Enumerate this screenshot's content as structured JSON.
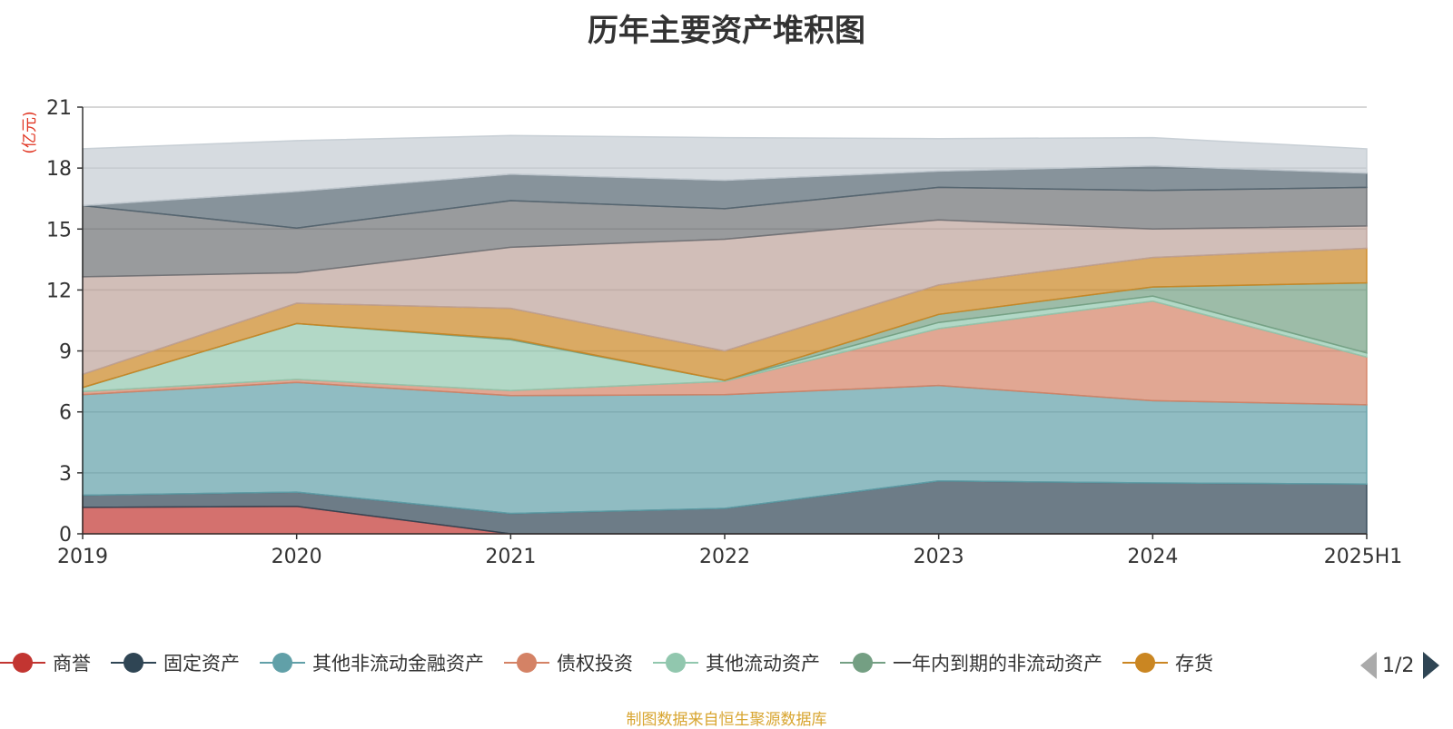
{
  "chart_data": {
    "type": "area",
    "stacked": true,
    "title": "历年主要资产堆积图",
    "ylabel": "(亿元)",
    "xlabel": "",
    "categories": [
      "2019",
      "2020",
      "2021",
      "2022",
      "2023",
      "2024",
      "2025H1"
    ],
    "ylim": [
      0,
      21
    ],
    "yticks": [
      0,
      3,
      6,
      9,
      12,
      15,
      18,
      21
    ],
    "grid": true,
    "series": [
      {
        "name": "商誉",
        "color": "#c23531",
        "values": [
          1.3,
          1.35,
          0.0,
          0.0,
          0.0,
          0.0,
          0.0
        ]
      },
      {
        "name": "固定资产",
        "color": "#2f4554",
        "values": [
          0.6,
          0.7,
          1.0,
          1.25,
          2.6,
          2.5,
          2.45
        ]
      },
      {
        "name": "其他非流动金融资产",
        "color": "#61a0a8",
        "values": [
          4.95,
          5.4,
          5.8,
          5.6,
          4.7,
          4.05,
          3.9
        ]
      },
      {
        "name": "债权投资",
        "color": "#d48265",
        "values": [
          0.15,
          0.15,
          0.25,
          0.65,
          2.8,
          4.9,
          2.35
        ]
      },
      {
        "name": "其他流动资产",
        "color": "#91c7ae",
        "values": [
          0.2,
          2.75,
          2.5,
          0.05,
          0.3,
          0.25,
          0.2
        ]
      },
      {
        "name": "一年内到期的非流动资产",
        "color": "#749f83",
        "values": [
          0.0,
          0.0,
          0.05,
          0.0,
          0.4,
          0.45,
          3.45
        ]
      },
      {
        "name": "存货",
        "color": "#ca8622",
        "values": [
          0.65,
          1.0,
          1.5,
          1.45,
          1.45,
          1.45,
          1.7
        ]
      },
      {
        "name": "",
        "color": "#bda29a",
        "values": [
          4.8,
          1.5,
          3.0,
          5.5,
          3.2,
          1.4,
          1.1
        ]
      },
      {
        "name": "",
        "color": "#6e7074",
        "values": [
          3.5,
          2.2,
          2.3,
          1.5,
          1.6,
          1.9,
          1.9
        ]
      },
      {
        "name": "",
        "color": "#546570",
        "values": [
          0.0,
          1.8,
          1.3,
          1.4,
          0.8,
          1.2,
          0.7
        ]
      },
      {
        "name": "",
        "color": "#c4ccd3",
        "values": [
          2.8,
          2.5,
          1.9,
          2.1,
          1.6,
          1.4,
          1.2
        ]
      }
    ],
    "legend_position": "bottom"
  },
  "legend": {
    "items": [
      {
        "label": "商誉",
        "color": "#c23531"
      },
      {
        "label": "固定资产",
        "color": "#2f4554"
      },
      {
        "label": "其他非流动金融资产",
        "color": "#61a0a8"
      },
      {
        "label": "债权投资",
        "color": "#d48265"
      },
      {
        "label": "其他流动资产",
        "color": "#91c7ae"
      },
      {
        "label": "一年内到期的非流动资产",
        "color": "#749f83"
      },
      {
        "label": "存货",
        "color": "#ca8622"
      }
    ],
    "page_text": "1/2"
  },
  "source_note": "制图数据来自恒生聚源数据库"
}
